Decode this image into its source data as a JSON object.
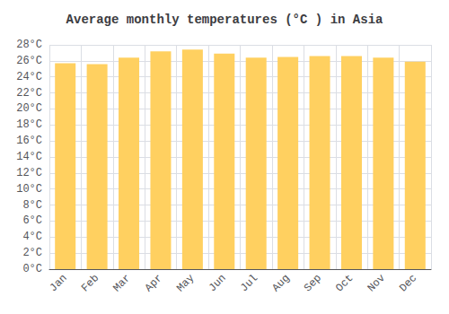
{
  "chart_data": {
    "type": "bar",
    "title": "Average monthly temperatures (°C ) in Asia",
    "categories": [
      "Jan",
      "Feb",
      "Mar",
      "Apr",
      "May",
      "Jun",
      "Jul",
      "Aug",
      "Sep",
      "Oct",
      "Nov",
      "Dec"
    ],
    "values": [
      25.7,
      25.6,
      26.4,
      27.2,
      27.4,
      26.9,
      26.4,
      26.5,
      26.6,
      26.6,
      26.4,
      25.9
    ],
    "color": "#FFD060",
    "ylim": [
      0,
      28
    ],
    "yticks": [
      {
        "value": 0,
        "label": "0°C"
      },
      {
        "value": 2,
        "label": "2°C"
      },
      {
        "value": 4,
        "label": "4°C"
      },
      {
        "value": 6,
        "label": "6°C"
      },
      {
        "value": 8,
        "label": "8°C"
      },
      {
        "value": 10,
        "label": "10°C"
      },
      {
        "value": 12,
        "label": "12°C"
      },
      {
        "value": 14,
        "label": "14°C"
      },
      {
        "value": 16,
        "label": "16°C"
      },
      {
        "value": 18,
        "label": "18°C"
      },
      {
        "value": 20,
        "label": "20°C"
      },
      {
        "value": 22,
        "label": "22°C"
      },
      {
        "value": 24,
        "label": "24°C"
      },
      {
        "value": 26,
        "label": "26°C"
      },
      {
        "value": 28,
        "label": "28°C"
      }
    ],
    "grid": true
  }
}
